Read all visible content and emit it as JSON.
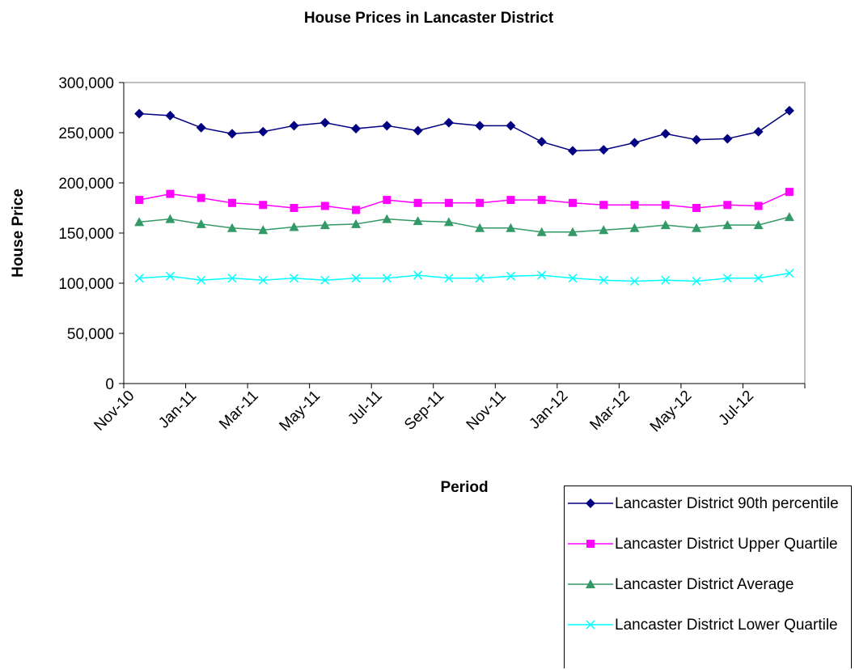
{
  "chart_data": {
    "type": "line",
    "title": "House Prices in Lancaster District",
    "x_label": "Period",
    "y_label": "House Price",
    "categories": [
      "Nov-10",
      null,
      "Jan-11",
      null,
      "Mar-11",
      null,
      "May-11",
      null,
      "Jul-11",
      null,
      "Sep-11",
      null,
      "Nov-11",
      null,
      "Jan-12",
      null,
      "Mar-12",
      null,
      "May-12",
      null,
      "Jul-12",
      null
    ],
    "series": [
      {
        "name": "Lancaster District 90th percentile",
        "color": "#000080",
        "marker": "diamond",
        "values": [
          269000,
          267000,
          255000,
          249000,
          251000,
          257000,
          260000,
          254000,
          257000,
          252000,
          260000,
          257000,
          257000,
          241000,
          232000,
          233000,
          240000,
          249000,
          243000,
          244000,
          251000,
          272000
        ]
      },
      {
        "name": "Lancaster District Upper Quartile",
        "color": "#ff00ff",
        "marker": "square",
        "values": [
          183000,
          189000,
          185000,
          180000,
          178000,
          175000,
          177000,
          173000,
          183000,
          180000,
          180000,
          180000,
          183000,
          183000,
          180000,
          178000,
          178000,
          178000,
          175000,
          178000,
          177000,
          191000
        ]
      },
      {
        "name": "Lancaster District Average",
        "color": "#339966",
        "marker": "triangle",
        "values": [
          161000,
          164000,
          159000,
          155000,
          153000,
          156000,
          158000,
          159000,
          164000,
          162000,
          161000,
          155000,
          155000,
          151000,
          151000,
          153000,
          155000,
          158000,
          155000,
          158000,
          158000,
          166000
        ]
      },
      {
        "name": "Lancaster District Lower Quartile",
        "color": "#00ffff",
        "marker": "x",
        "values": [
          105000,
          107000,
          103000,
          105000,
          103000,
          105000,
          103000,
          105000,
          105000,
          108000,
          105000,
          105000,
          107000,
          108000,
          105000,
          103000,
          102000,
          103000,
          102000,
          105000,
          105000,
          110000
        ]
      }
    ],
    "ylim": [
      0,
      300000
    ],
    "yticks": [
      0,
      {
        "value": 50000,
        "label": "50,000"
      },
      {
        "value": 100000,
        "label": "100,000"
      },
      {
        "value": 150000,
        "label": "150,000"
      },
      {
        "value": 200000,
        "label": "200,000"
      },
      {
        "value": 250000,
        "label": "250,000"
      },
      {
        "value": 300000,
        "label": "300,000"
      }
    ]
  }
}
